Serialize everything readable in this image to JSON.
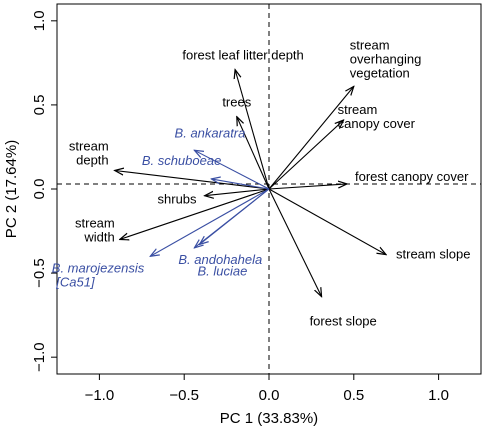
{
  "chart_data": {
    "type": "scatter",
    "subtype": "pca-biplot",
    "title": "",
    "xlabel": "PC 1 (33.83%)",
    "ylabel": "PC 2 (17.64%)",
    "xlim": [
      -1.25,
      1.25
    ],
    "ylim": [
      -1.1,
      1.1
    ],
    "x_ticks": [
      -1.0,
      -0.5,
      0.0,
      0.5,
      1.0
    ],
    "x_tick_labels": [
      "−1.0",
      "−0.5",
      "0.0",
      "0.5",
      "1.0"
    ],
    "y_ticks": [
      -1.0,
      -0.5,
      0.0,
      0.5,
      1.0
    ],
    "y_tick_labels": [
      "−1.0",
      "−0.5",
      "0.0",
      "0.5",
      "1.0"
    ],
    "zero_lines": true,
    "grid": false,
    "colors": {
      "habitat": "#000000",
      "species": "#3a4fa3"
    },
    "habitat_vectors": [
      {
        "name": "forest leaf litter depth",
        "x": -0.2,
        "y": 0.71
      },
      {
        "name": "trees",
        "x": -0.19,
        "y": 0.43
      },
      {
        "name": "stream overhanging vegetation",
        "x": 0.5,
        "y": 0.61
      },
      {
        "name": "stream canopy cover",
        "x": 0.44,
        "y": 0.41
      },
      {
        "name": "forest canopy cover",
        "x": 0.46,
        "y": 0.03
      },
      {
        "name": "stream depth",
        "x": -0.91,
        "y": 0.11
      },
      {
        "name": "shrubs",
        "x": -0.38,
        "y": -0.04
      },
      {
        "name": "stream width",
        "x": -0.88,
        "y": -0.3
      },
      {
        "name": "stream slope",
        "x": 0.69,
        "y": -0.39
      },
      {
        "name": "forest slope",
        "x": 0.31,
        "y": -0.64
      }
    ],
    "species_vectors": [
      {
        "name": "B. ankaratra",
        "x": -0.44,
        "y": 0.23
      },
      {
        "name": "B. schuboeae",
        "x": -0.34,
        "y": 0.06
      },
      {
        "name": "B. andohahela",
        "x": -0.44,
        "y": -0.35
      },
      {
        "name": "B. luciae",
        "x": -0.41,
        "y": -0.33
      },
      {
        "name": "B. marojezensis [Ca51]",
        "x": -0.7,
        "y": -0.4
      }
    ]
  }
}
